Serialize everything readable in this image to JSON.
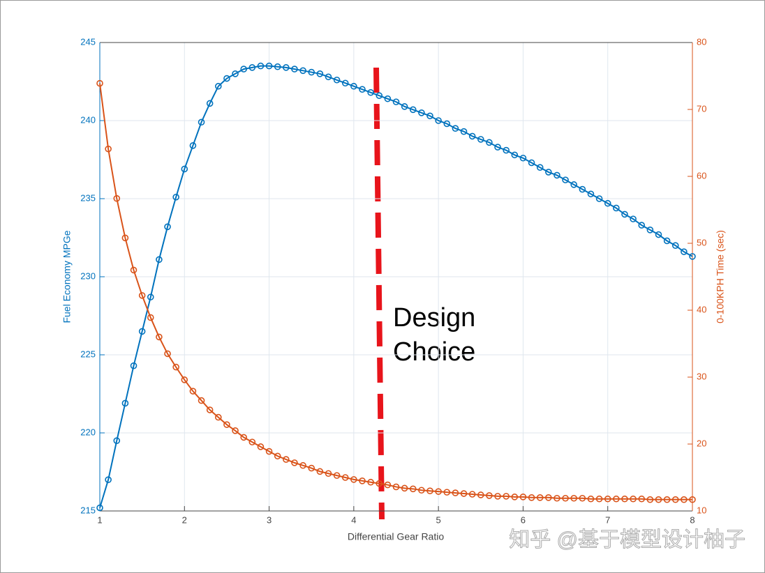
{
  "chart_data": {
    "type": "line",
    "xlabel": "Differential Gear Ratio",
    "ylabel": "Fuel Economy MPGe",
    "y2label": "0-100KPH Time (sec)",
    "annotation": [
      "Design",
      "Choice"
    ],
    "watermark": "知乎 @基于模型设计柚子",
    "x": [
      1.0,
      1.1,
      1.2,
      1.3,
      1.4,
      1.5,
      1.6,
      1.7,
      1.8,
      1.9,
      2.0,
      2.1,
      2.2,
      2.3,
      2.4,
      2.5,
      2.6,
      2.7,
      2.8,
      2.9,
      3.0,
      3.1,
      3.2,
      3.3,
      3.4,
      3.5,
      3.6,
      3.7,
      3.8,
      3.9,
      4.0,
      4.1,
      4.2,
      4.3,
      4.4,
      4.5,
      4.6,
      4.7,
      4.8,
      4.9,
      5.0,
      5.1,
      5.2,
      5.3,
      5.4,
      5.5,
      5.6,
      5.7,
      5.8,
      5.9,
      6.0,
      6.1,
      6.2,
      6.3,
      6.4,
      6.5,
      6.6,
      6.7,
      6.8,
      6.9,
      7.0,
      7.1,
      7.2,
      7.3,
      7.4,
      7.5,
      7.6,
      7.7,
      7.8,
      7.9,
      8.0
    ],
    "series": [
      {
        "color": "#0072bd",
        "values": [
          215.2,
          217.0,
          219.5,
          221.9,
          224.3,
          226.5,
          228.7,
          231.1,
          233.2,
          235.1,
          236.9,
          238.4,
          239.9,
          241.1,
          242.2,
          242.7,
          243.0,
          243.3,
          243.4,
          243.5,
          243.5,
          243.45,
          243.4,
          243.3,
          243.2,
          243.1,
          243.0,
          242.8,
          242.6,
          242.4,
          242.2,
          242.0,
          241.8,
          241.6,
          241.4,
          241.2,
          240.9,
          240.7,
          240.5,
          240.3,
          240.0,
          239.8,
          239.5,
          239.3,
          239.0,
          238.8,
          238.6,
          238.3,
          238.1,
          237.8,
          237.6,
          237.3,
          237.0,
          236.7,
          236.5,
          236.2,
          235.9,
          235.6,
          235.3,
          235.0,
          234.7,
          234.4,
          234.0,
          233.7,
          233.3,
          233.0,
          232.7,
          232.3,
          232.0,
          231.6,
          231.3
        ]
      },
      {
        "color": "#d95319",
        "axis": "y2",
        "values": [
          73.9,
          64.1,
          56.7,
          50.8,
          46.0,
          42.2,
          38.9,
          36.0,
          33.5,
          31.5,
          29.6,
          27.9,
          26.5,
          25.1,
          24.0,
          22.9,
          22.0,
          21.0,
          20.3,
          19.6,
          18.9,
          18.2,
          17.7,
          17.2,
          16.8,
          16.4,
          15.9,
          15.6,
          15.3,
          15.0,
          14.7,
          14.5,
          14.3,
          14.1,
          13.9,
          13.6,
          13.4,
          13.3,
          13.1,
          13.0,
          12.9,
          12.8,
          12.7,
          12.6,
          12.5,
          12.4,
          12.3,
          12.2,
          12.2,
          12.1,
          12.1,
          12.0,
          12.0,
          12.0,
          11.9,
          11.9,
          11.9,
          11.9,
          11.8,
          11.8,
          11.8,
          11.8,
          11.8,
          11.8,
          11.8,
          11.7,
          11.7,
          11.7,
          11.7,
          11.7,
          11.7
        ]
      }
    ],
    "xlim": [
      1,
      8
    ],
    "xticks": [
      1,
      2,
      3,
      4,
      5,
      6,
      7,
      8
    ],
    "ylim": [
      215,
      245
    ],
    "yticks": [
      215,
      220,
      225,
      230,
      235,
      240,
      245
    ],
    "y2lim": [
      10,
      80
    ],
    "y2ticks": [
      10,
      20,
      30,
      40,
      50,
      60,
      70,
      80
    ],
    "grid": true
  }
}
